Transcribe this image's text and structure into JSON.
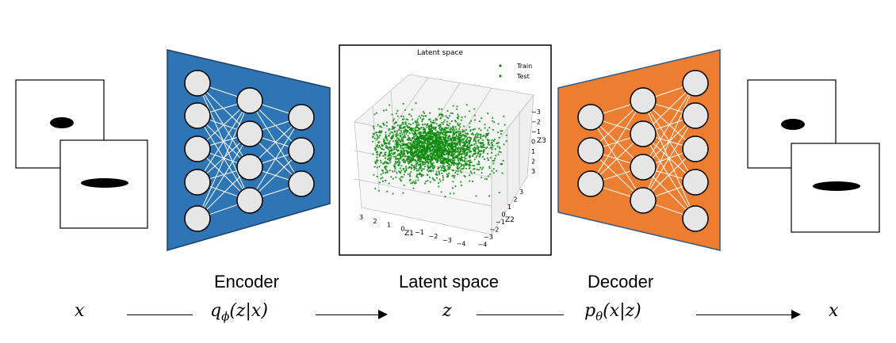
{
  "labels": {
    "encoder": "Encoder",
    "latent": "Latent space",
    "decoder": "Decoder"
  },
  "math": {
    "x_in": "x",
    "q_base": "q",
    "q_sub": "ϕ",
    "q_arg": "(z|x)",
    "z": "z",
    "p_base": "p",
    "p_sub": "θ",
    "p_arg": "(x|z)",
    "x_out": "x"
  },
  "plot": {
    "title": "Latent space",
    "legend": [
      "Train",
      "Test"
    ],
    "z1_label": "Z1",
    "z2_label": "Z2",
    "z3_label": "Z3",
    "z1_ticks": [
      "3",
      "2",
      "1",
      "0",
      "−1",
      "−2",
      "−3",
      "−4"
    ],
    "z2_ticks": [
      "3",
      "2",
      "1",
      "0",
      "−1",
      "−2",
      "−3",
      "−4"
    ],
    "z3_ticks": [
      "−3",
      "−2",
      "−1",
      "0",
      "1",
      "2",
      "3"
    ]
  },
  "colors": {
    "encoder": "#2e75b6",
    "decoder": "#ed7d31",
    "node": "#e6e6e6",
    "points": "#0a8a0a"
  }
}
